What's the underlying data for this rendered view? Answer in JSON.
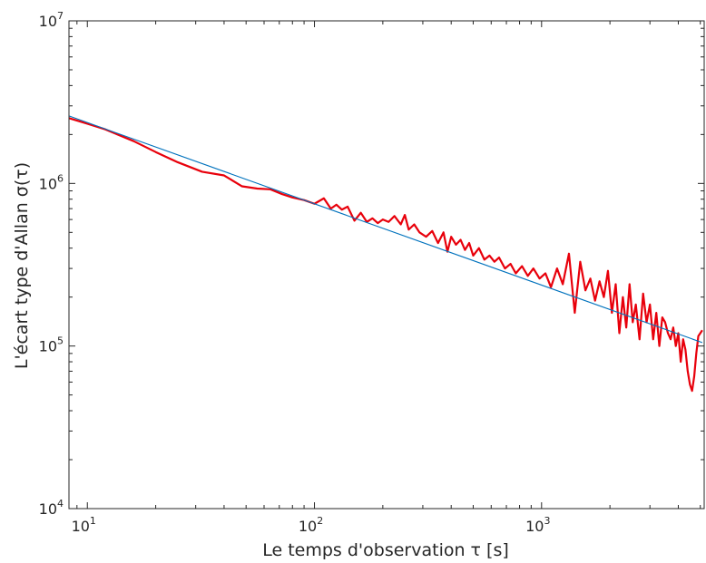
{
  "chart_data": {
    "type": "line",
    "title": "",
    "xlabel": "Le temps d'observation τ [s]",
    "ylabel": "L'écart type d'Allan σ(τ)",
    "x_scale": "log",
    "y_scale": "log",
    "xlim": [
      8.3,
      5200
    ],
    "ylim": [
      10000,
      10000000
    ],
    "grid": false,
    "x_ticks": [
      {
        "value": 10,
        "base": "10",
        "exp": "1"
      },
      {
        "value": 100,
        "base": "10",
        "exp": "2"
      },
      {
        "value": 1000,
        "base": "10",
        "exp": "3"
      }
    ],
    "y_ticks": [
      {
        "value": 10000,
        "base": "10",
        "exp": "4"
      },
      {
        "value": 100000,
        "base": "10",
        "exp": "5"
      },
      {
        "value": 1000000,
        "base": "10",
        "exp": "6"
      },
      {
        "value": 10000000,
        "base": "10",
        "exp": "7"
      }
    ],
    "series": [
      {
        "color": "#e8000b",
        "style": "thick",
        "x": [
          8.3,
          10,
          12,
          16,
          20,
          25,
          32,
          40,
          48,
          56,
          64,
          72,
          80,
          90,
          100,
          110,
          118,
          125,
          132,
          140,
          150,
          160,
          170,
          180,
          190,
          200,
          212,
          225,
          240,
          250,
          260,
          275,
          290,
          310,
          330,
          350,
          370,
          385,
          400,
          420,
          440,
          460,
          480,
          500,
          530,
          560,
          590,
          620,
          650,
          690,
          730,
          770,
          820,
          870,
          920,
          980,
          1040,
          1100,
          1170,
          1240,
          1320,
          1400,
          1480,
          1560,
          1640,
          1720,
          1800,
          1880,
          1960,
          2040,
          2120,
          2200,
          2280,
          2360,
          2440,
          2520,
          2600,
          2700,
          2800,
          2900,
          3000,
          3100,
          3200,
          3300,
          3400,
          3500,
          3600,
          3700,
          3800,
          3900,
          4000,
          4100,
          4200,
          4300,
          4400,
          4500,
          4600,
          4700,
          4800,
          4900,
          5000,
          5100
        ],
        "y": [
          2520000,
          2330000,
          2150000,
          1820000,
          1560000,
          1350000,
          1180000,
          1120000,
          960000,
          930000,
          920000,
          860000,
          820000,
          790000,
          750000,
          810000,
          700000,
          740000,
          690000,
          720000,
          590000,
          660000,
          580000,
          610000,
          570000,
          600000,
          580000,
          630000,
          560000,
          640000,
          520000,
          560000,
          500000,
          470000,
          510000,
          430000,
          500000,
          380000,
          470000,
          420000,
          450000,
          390000,
          430000,
          360000,
          400000,
          340000,
          360000,
          330000,
          350000,
          300000,
          320000,
          280000,
          310000,
          270000,
          300000,
          260000,
          280000,
          230000,
          300000,
          240000,
          370000,
          160000,
          330000,
          220000,
          260000,
          190000,
          250000,
          200000,
          290000,
          160000,
          240000,
          120000,
          200000,
          130000,
          240000,
          140000,
          180000,
          110000,
          210000,
          140000,
          180000,
          110000,
          160000,
          100000,
          150000,
          140000,
          120000,
          110000,
          130000,
          100000,
          120000,
          80000,
          110000,
          95000,
          70000,
          58000,
          53000,
          65000,
          90000,
          115000,
          120000,
          125000
        ]
      },
      {
        "color": "#0072bd",
        "style": "thin",
        "x": [
          8.3,
          5100
        ],
        "y": [
          2600000,
          105000
        ]
      }
    ]
  }
}
